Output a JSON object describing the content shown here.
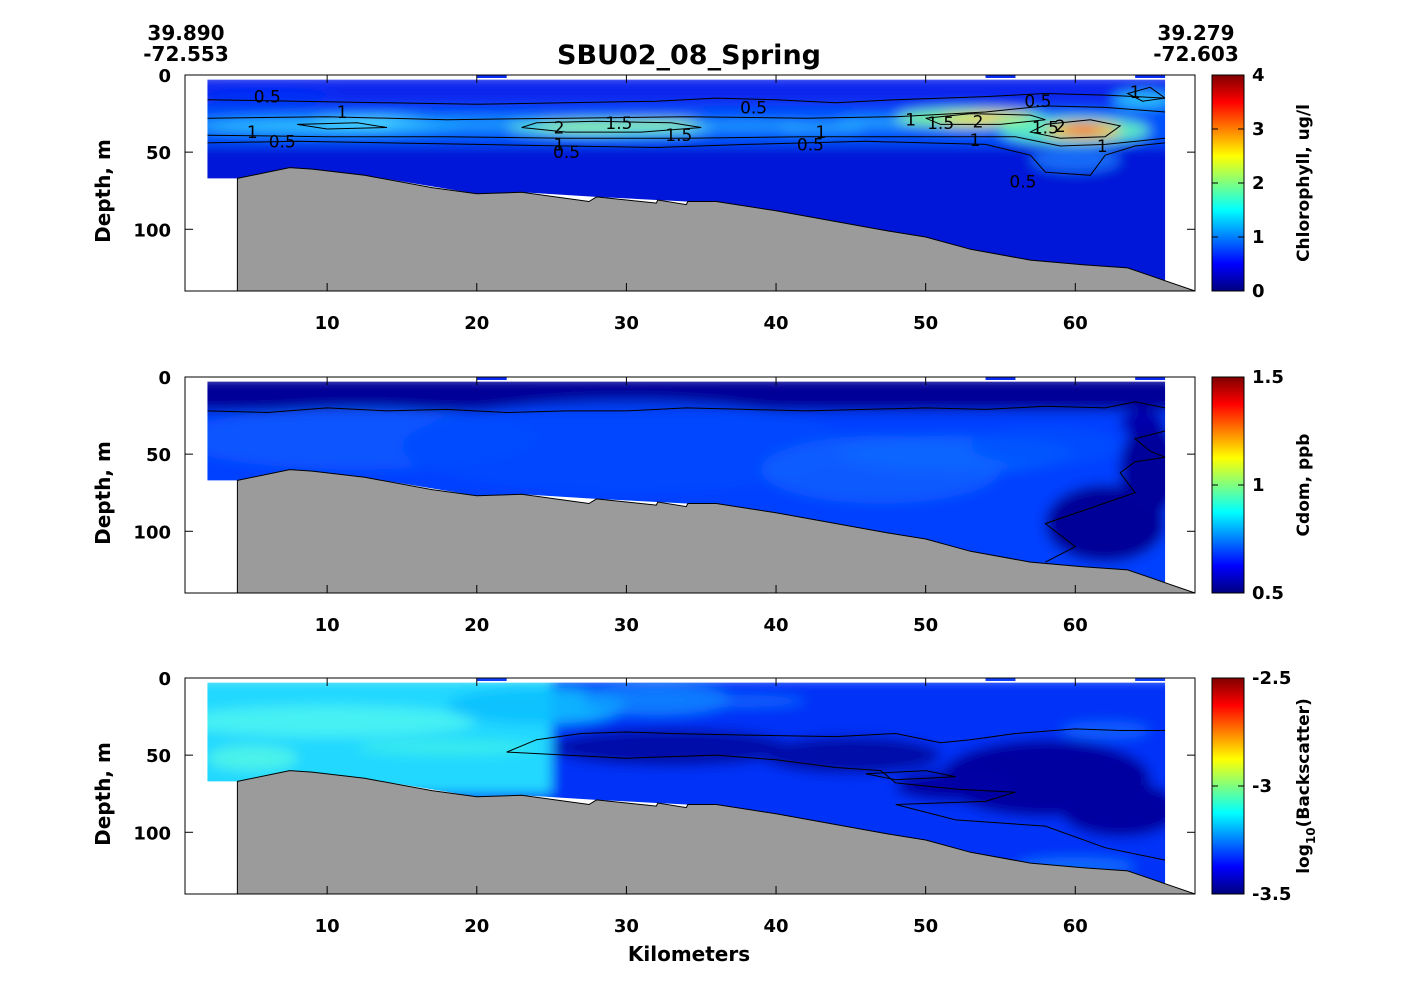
{
  "title": "SBU02_08_Spring",
  "start_location": {
    "lat": "39.890",
    "lon": "-72.553"
  },
  "end_location": {
    "lat": "39.279",
    "lon": "-72.603"
  },
  "x_label": "Kilometers",
  "colors": {
    "bathymetry": "#9b9b9b",
    "jet_stops": [
      "#00007f",
      "#0000ff",
      "#007fff",
      "#00ffff",
      "#7fff7f",
      "#ffff00",
      "#ff7f00",
      "#ff0000",
      "#7f0000"
    ]
  },
  "chart_data": [
    {
      "type": "heatmap",
      "panel": "chlorophyll",
      "ylabel": "Depth, m",
      "colorbar_label": "Chlorophyll, ug/l",
      "xlim": [
        0.5,
        68
      ],
      "ylim": [
        140,
        0
      ],
      "x_ticks": [
        "10",
        "20",
        "30",
        "40",
        "50",
        "60"
      ],
      "y_ticks": [
        "0",
        "50",
        "100"
      ],
      "colorbar_range": [
        0,
        4
      ],
      "colorbar_ticks": [
        "0",
        "1",
        "2",
        "3",
        "4"
      ],
      "data_x_range": [
        2,
        66
      ],
      "contour_labels": [
        {
          "text": "0.5",
          "x": 6,
          "y": 14
        },
        {
          "text": "1",
          "x": 11,
          "y": 24
        },
        {
          "text": "1",
          "x": 5,
          "y": 37
        },
        {
          "text": "0.5",
          "x": 7,
          "y": 43
        },
        {
          "text": "2",
          "x": 25.5,
          "y": 34
        },
        {
          "text": "1.5",
          "x": 29.5,
          "y": 31
        },
        {
          "text": "1.5",
          "x": 33.5,
          "y": 39
        },
        {
          "text": "1",
          "x": 25.5,
          "y": 45
        },
        {
          "text": "0.5",
          "x": 26,
          "y": 50
        },
        {
          "text": "0.5",
          "x": 38.5,
          "y": 21
        },
        {
          "text": "1",
          "x": 43,
          "y": 37
        },
        {
          "text": "0.5",
          "x": 42.3,
          "y": 45
        },
        {
          "text": "1",
          "x": 49,
          "y": 29
        },
        {
          "text": "1.5",
          "x": 51,
          "y": 31
        },
        {
          "text": "2",
          "x": 53.5,
          "y": 30
        },
        {
          "text": "1",
          "x": 53.3,
          "y": 42
        },
        {
          "text": "0.5",
          "x": 57.5,
          "y": 17
        },
        {
          "text": "1.5",
          "x": 58,
          "y": 34
        },
        {
          "text": "2",
          "x": 59,
          "y": 33
        },
        {
          "text": "1",
          "x": 61.8,
          "y": 46
        },
        {
          "text": "0.5",
          "x": 56.5,
          "y": 69
        },
        {
          "text": "1",
          "x": 64,
          "y": 11
        }
      ]
    },
    {
      "type": "heatmap",
      "panel": "cdom",
      "ylabel": "Depth, m",
      "colorbar_label": "Cdom, ppb",
      "xlim": [
        0.5,
        68
      ],
      "ylim": [
        140,
        0
      ],
      "x_ticks": [
        "10",
        "20",
        "30",
        "40",
        "50",
        "60"
      ],
      "y_ticks": [
        "0",
        "50",
        "100"
      ],
      "colorbar_range": [
        0.5,
        1.5
      ],
      "colorbar_ticks": [
        "0.5",
        "1",
        "1.5"
      ],
      "data_x_range": [
        2,
        66
      ]
    },
    {
      "type": "heatmap",
      "panel": "backscatter",
      "ylabel": "Depth, m",
      "colorbar_label_main": "log",
      "colorbar_label_sub": "10",
      "colorbar_label_rest": "(Backscatter)",
      "xlabel": "Kilometers",
      "xlim": [
        0.5,
        68
      ],
      "ylim": [
        140,
        0
      ],
      "x_ticks": [
        "10",
        "20",
        "30",
        "40",
        "50",
        "60"
      ],
      "y_ticks": [
        "0",
        "50",
        "100"
      ],
      "colorbar_range": [
        -3.5,
        -2.5
      ],
      "colorbar_ticks": [
        "-3.5",
        "-3",
        "-2.5"
      ],
      "data_x_range": [
        2,
        66
      ]
    }
  ],
  "bathymetry": {
    "x": [
      4,
      7.5,
      9,
      12.5,
      17,
      20,
      23,
      27.5,
      28,
      32,
      32.1,
      34,
      34.1,
      36,
      40,
      47.4,
      50,
      53,
      57,
      60.5,
      63.5,
      68
    ],
    "depth": [
      67,
      60,
      61,
      65,
      73,
      77,
      76,
      82,
      79,
      83,
      81,
      84,
      82,
      82,
      88,
      101,
      105,
      113,
      120,
      123,
      125,
      140
    ]
  }
}
